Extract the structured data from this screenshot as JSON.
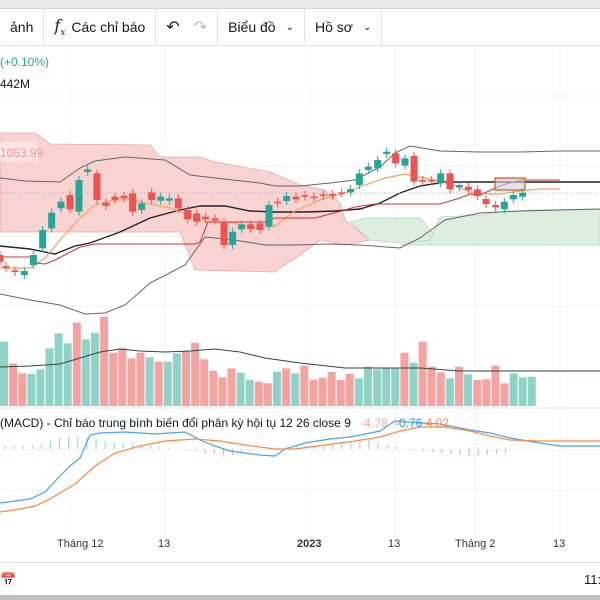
{
  "toolbar": {
    "compare_label": "ảnh",
    "indicators_label": "Các chỉ báo",
    "chart_label": "Biểu đồ",
    "profile_label": "Hồ sơ"
  },
  "legend": {
    "change": "(+0.10%)",
    "volume": "442M",
    "price_label": "1053.99"
  },
  "macd": {
    "title": "(MACD) - Chỉ báo trung bình biến đổi phân kỳ hội tụ 12 26 close 9",
    "histogram": "-4.78",
    "macd": "-0.76",
    "signal": "4.02"
  },
  "time_axis": [
    "Tháng 12",
    "13",
    "2023",
    "13",
    "Tháng 2",
    "13"
  ],
  "bottom": {
    "time": "11:"
  },
  "colors": {
    "up": "#26a69a",
    "down": "#ef5350",
    "macd": "#2196f3",
    "signal": "#ff9800",
    "up_cloud": "#a5d6a7",
    "down_cloud": "#ef9a9a"
  }
}
